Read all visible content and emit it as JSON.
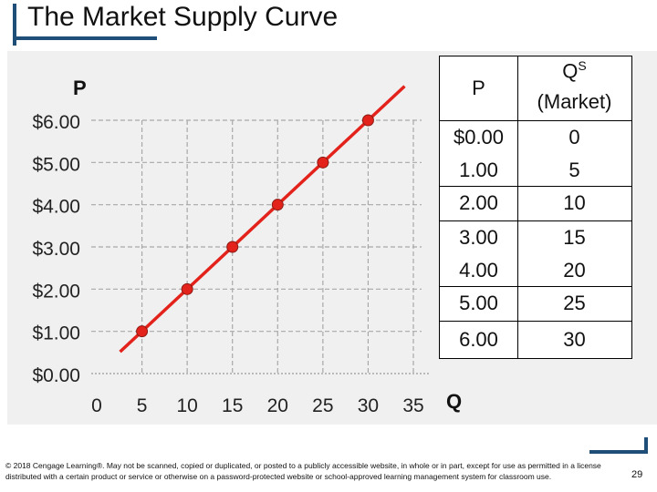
{
  "title": "The Market Supply Curve",
  "colors": {
    "accent": "#1f4e79",
    "curve": "#e3231b",
    "point": "#e3231b",
    "panel": "#f0f0f0"
  },
  "chart_data": {
    "type": "line",
    "x_axis_title": "Q",
    "y_axis_title": "P",
    "x_ticks": [
      "0",
      "5",
      "10",
      "15",
      "20",
      "25",
      "30",
      "35"
    ],
    "y_ticks": [
      "$0.00",
      "$1.00",
      "$2.00",
      "$3.00",
      "$4.00",
      "$5.00",
      "$6.00"
    ],
    "xlim": [
      0,
      35
    ],
    "ylim": [
      0,
      6
    ],
    "grid": true,
    "series": [
      {
        "points": [
          {
            "x": 5,
            "y": 1
          },
          {
            "x": 10,
            "y": 2
          },
          {
            "x": 15,
            "y": 3
          },
          {
            "x": 20,
            "y": 4
          },
          {
            "x": 25,
            "y": 5
          },
          {
            "x": 30,
            "y": 6
          }
        ]
      }
    ]
  },
  "table": {
    "headers": {
      "p": "P",
      "qs_main": "Q",
      "qs_sup": "S",
      "qs_sub": "(Market)"
    },
    "rows": [
      {
        "p": "$0.00",
        "q": "0"
      },
      {
        "p": "1.00",
        "q": "5"
      },
      {
        "p": "2.00",
        "q": "10"
      },
      {
        "p": "3.00",
        "q": "15"
      },
      {
        "p": "4.00",
        "q": "20"
      },
      {
        "p": "5.00",
        "q": "25"
      },
      {
        "p": "6.00",
        "q": "30"
      }
    ]
  },
  "footer": "© 2018 Cengage Learning®. May not be scanned, copied or duplicated, or posted to a publicly accessible website, in whole or in part, except for use as permitted in a license distributed with a certain product or service or otherwise on a password-protected website or school-approved learning management system for classroom use.",
  "page_number": "29"
}
